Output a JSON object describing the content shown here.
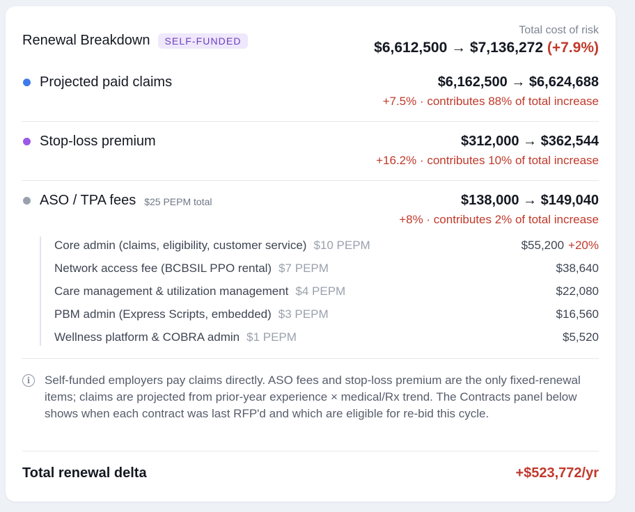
{
  "header": {
    "title": "Renewal Breakdown",
    "badge": "SELF-FUNDED",
    "total_cost_label": "Total cost of risk",
    "total_cost_value": "$6,612,500 → $7,136,272",
    "total_cost_change": "(+7.9%)"
  },
  "rows": [
    {
      "label": "Projected paid claims",
      "note": "",
      "dot_color": "#3f7be8",
      "value": "$6,162,500 → $6,624,688",
      "sub": "+7.5% · contributes 88% of total increase"
    },
    {
      "label": "Stop-loss premium",
      "note": "",
      "dot_color": "#9b59e6",
      "value": "$312,000 → $362,544",
      "sub": "+16.2% · contributes 10% of total increase"
    },
    {
      "label": "ASO / TPA fees",
      "note": "$25 PEPM total",
      "dot_color": "#9aa1ad",
      "value": "$138,000 → $149,040",
      "sub": "+8% · contributes 2% of total increase"
    }
  ],
  "aso_items": [
    {
      "label": "Core admin (claims, eligibility, customer service)",
      "pepm": "$10 PEPM",
      "amount": "$55,200",
      "change": "+20%"
    },
    {
      "label": "Network access fee (BCBSIL PPO rental)",
      "pepm": "$7 PEPM",
      "amount": "$38,640",
      "change": ""
    },
    {
      "label": "Care management & utilization management",
      "pepm": "$4 PEPM",
      "amount": "$22,080",
      "change": ""
    },
    {
      "label": "PBM admin (Express Scripts, embedded)",
      "pepm": "$3 PEPM",
      "amount": "$16,560",
      "change": ""
    },
    {
      "label": "Wellness platform & COBRA admin",
      "pepm": "$1 PEPM",
      "amount": "$5,520",
      "change": ""
    }
  ],
  "info": {
    "icon": "info-icon",
    "text": "Self-funded employers pay claims directly. ASO fees and stop-loss premium are the only fixed-renewal items; claims are projected from prior-year experience × medical/Rx trend. The Contracts panel below shows when each contract was last RFP'd and which are eligible for re-bid this cycle."
  },
  "total": {
    "label": "Total renewal delta",
    "value": "+$523,772/yr"
  }
}
